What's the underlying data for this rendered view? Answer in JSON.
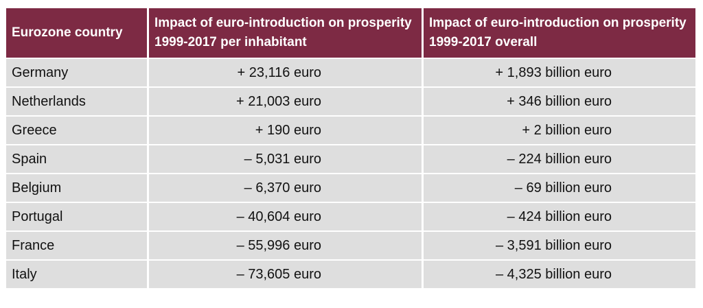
{
  "table": {
    "headers": [
      "Eurozone country",
      "Impact of euro-introduction on prosperity 1999-2017 per inhabitant",
      "Impact of euro-introduction on prosperity 1999-2017 overall"
    ],
    "rows": [
      {
        "country": "Germany",
        "per_inhabitant": "+ 23,116 euro",
        "overall": "+ 1,893 billion euro"
      },
      {
        "country": "Netherlands",
        "per_inhabitant": "+ 21,003 euro",
        "overall": "+ 346 billion euro"
      },
      {
        "country": "Greece",
        "per_inhabitant": "+ 190 euro",
        "overall": "+ 2 billion euro"
      },
      {
        "country": "Spain",
        "per_inhabitant": "– 5,031 euro",
        "overall": "– 224 billion euro"
      },
      {
        "country": "Belgium",
        "per_inhabitant": "– 6,370 euro",
        "overall": "– 69 billion euro"
      },
      {
        "country": "Portugal",
        "per_inhabitant": "– 40,604 euro",
        "overall": "– 424 billion euro"
      },
      {
        "country": "France",
        "per_inhabitant": "– 55,996 euro",
        "overall": "– 3,591 billion euro"
      },
      {
        "country": "Italy",
        "per_inhabitant": "– 73,605 euro",
        "overall": "– 4,325 billion euro"
      }
    ]
  },
  "colors": {
    "header_bg": "#7d2a44",
    "header_text": "#ffffff",
    "cell_bg": "#dedede"
  }
}
